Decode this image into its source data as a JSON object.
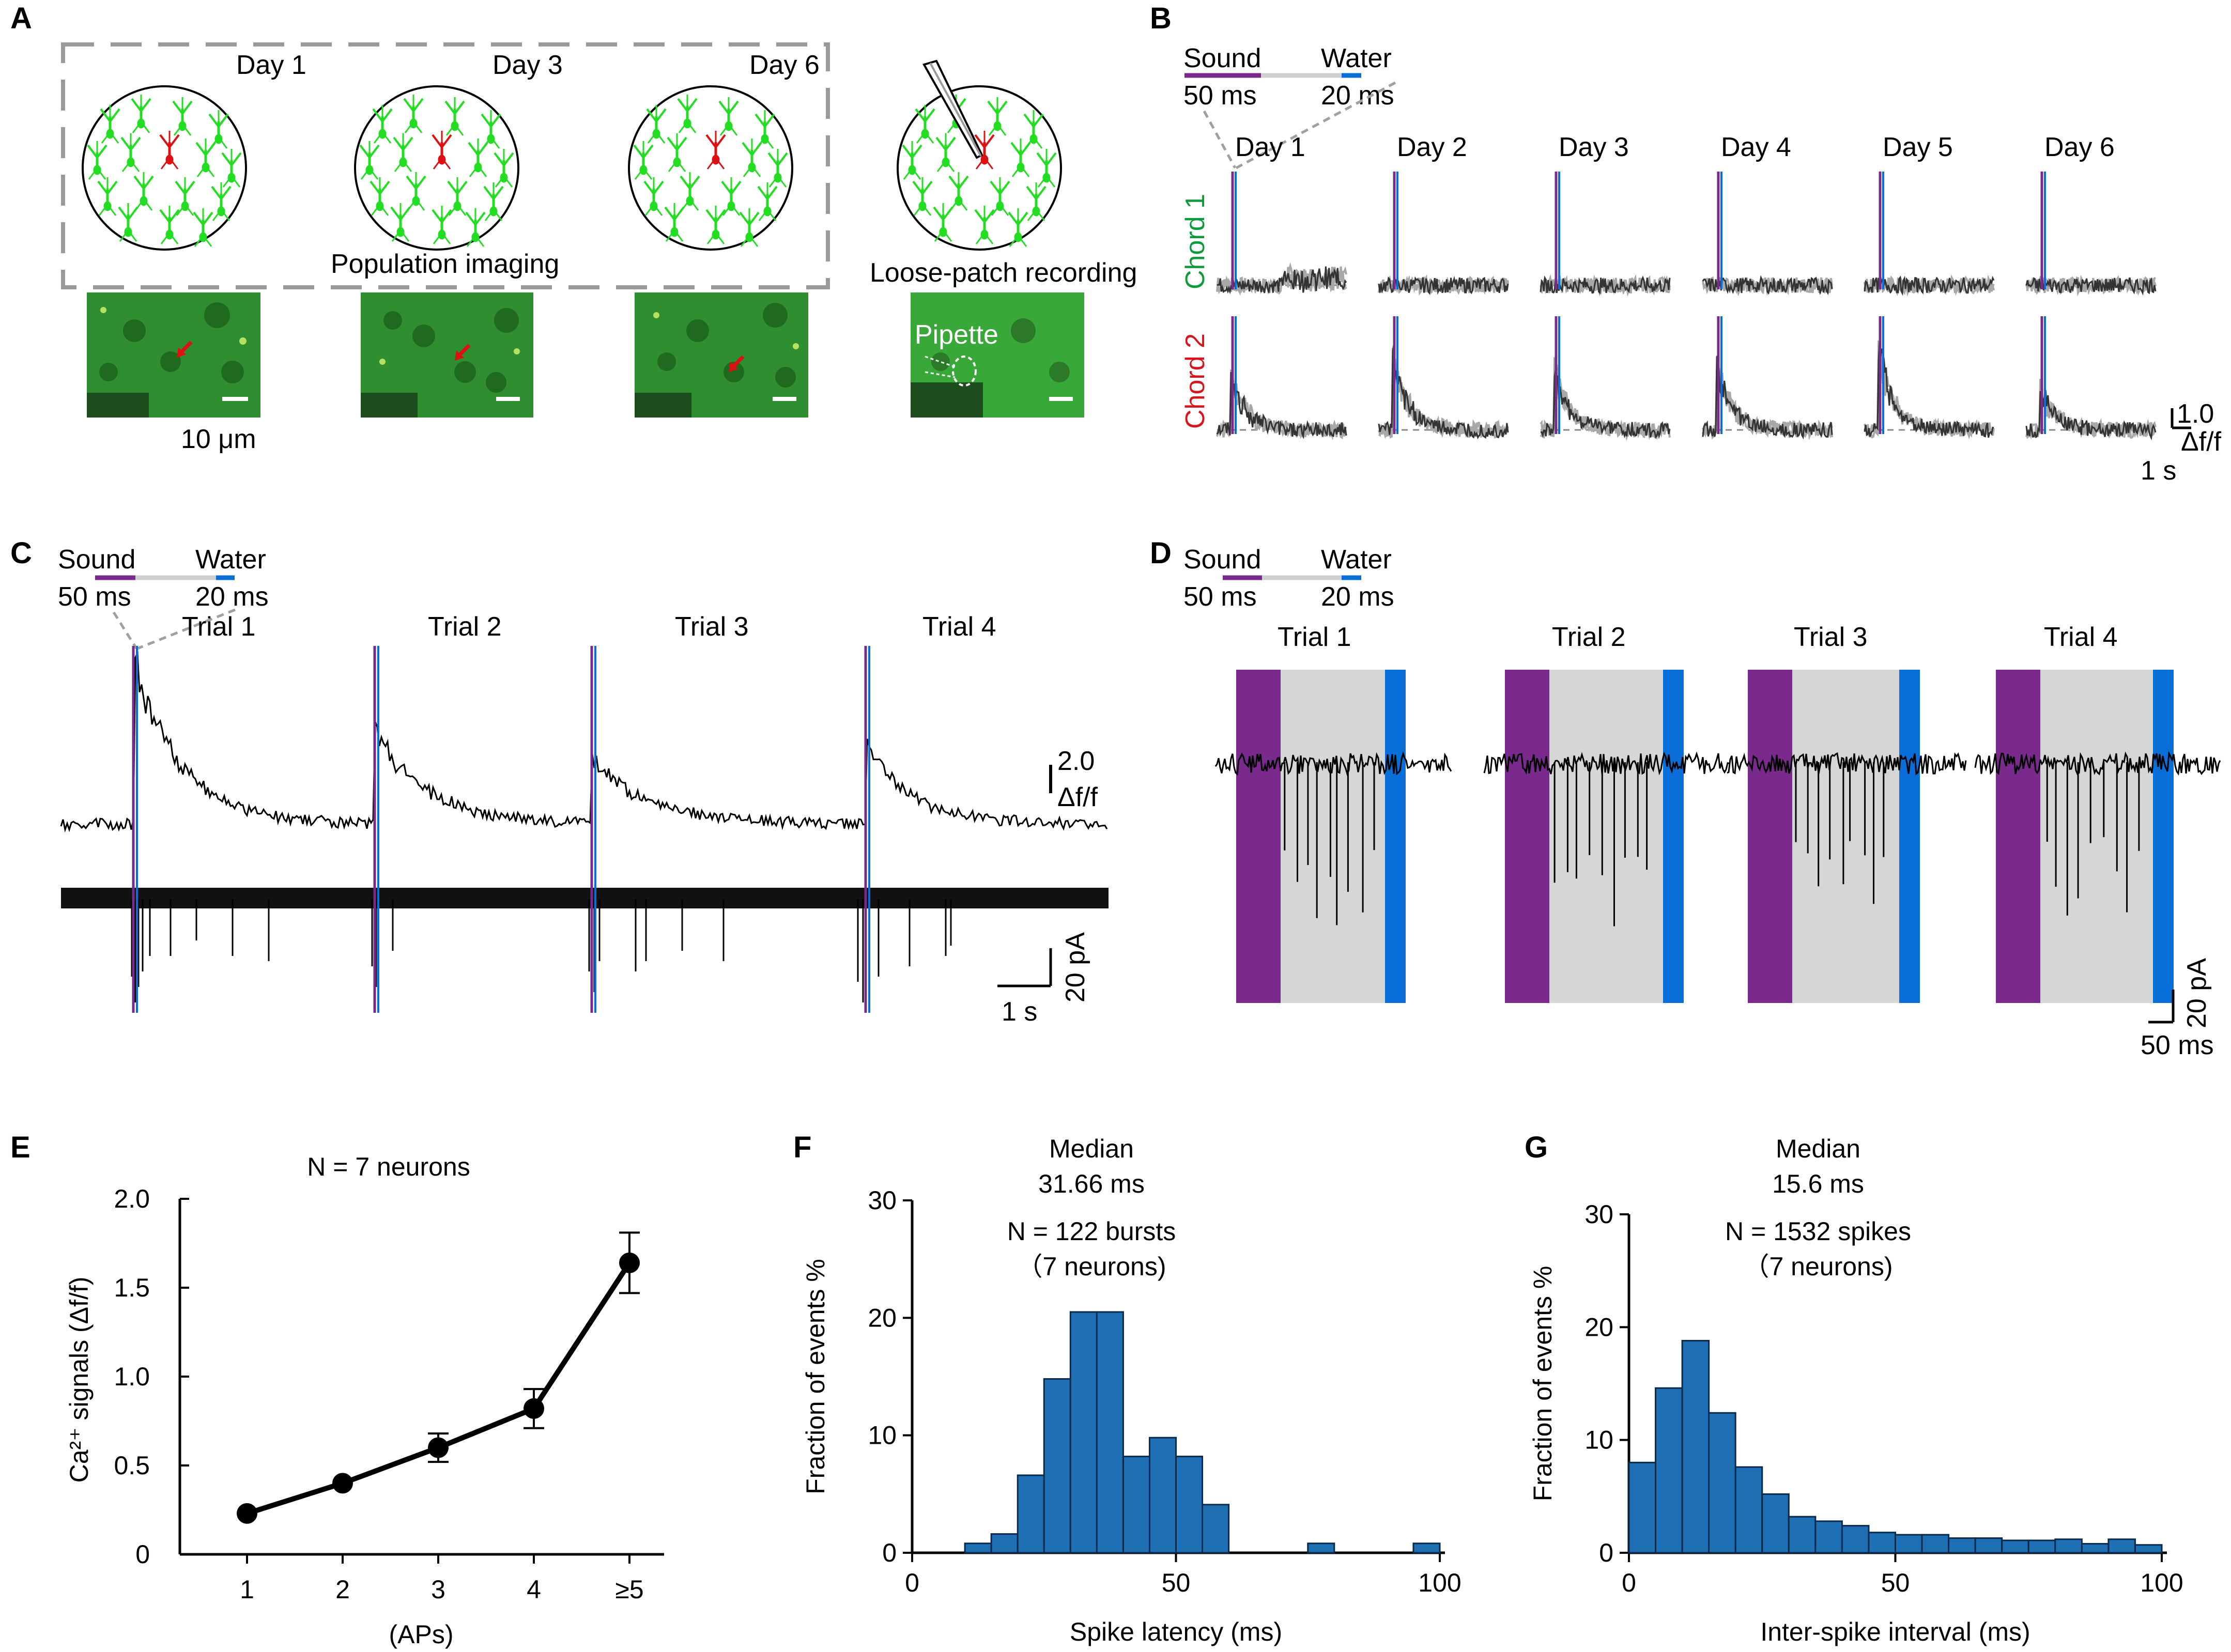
{
  "colors": {
    "neuron": "#22dd22",
    "target": "#dd1111",
    "sound": "#7a2a8c",
    "water": "#0a6ed8",
    "gray_window": "#d6d6d6",
    "bar": "#1f6fb5",
    "chord1": "#0f9a3a",
    "chord2": "#d8141c",
    "micro_bg": "#2f8e2f"
  },
  "panels": {
    "A": {
      "label": "A",
      "days": [
        "Day 1",
        "Day 3",
        "Day 6"
      ],
      "caption_imaging": "Population imaging",
      "caption_patch": "Loose-patch recording",
      "pipette": "Pipette",
      "scalebar": "10 μm"
    },
    "B": {
      "label": "B",
      "sound": "Sound",
      "sound_dur": "50 ms",
      "water": "Water",
      "water_dur": "20 ms",
      "days": [
        "Day 1",
        "Day 2",
        "Day 3",
        "Day 4",
        "Day 5",
        "Day 6"
      ],
      "row1": "Chord 1",
      "row2": "Chord 2",
      "scale_y_value": "1.0",
      "scale_y_unit": "Δf/f",
      "scale_x": "1 s"
    },
    "C": {
      "label": "C",
      "sound": "Sound",
      "sound_dur": "50 ms",
      "water": "Water",
      "water_dur": "20 ms",
      "trials": [
        "Trial 1",
        "Trial 2",
        "Trial 3",
        "Trial 4"
      ],
      "scale_ca_value": "2.0",
      "scale_ca_unit": "Δf/f",
      "scale_pa": "20 pA",
      "scale_x": "1 s"
    },
    "D": {
      "label": "D",
      "sound": "Sound",
      "sound_dur": "50 ms",
      "water": "Water",
      "water_dur": "20 ms",
      "trials": [
        "Trial 1",
        "Trial 2",
        "Trial 3",
        "Trial 4"
      ],
      "scale_pa": "20 pA",
      "scale_x": "50 ms"
    },
    "E": {
      "label": "E"
    },
    "F": {
      "label": "F"
    },
    "G": {
      "label": "G"
    }
  },
  "chart_data": [
    {
      "id": "E",
      "type": "line",
      "title": "N = 7 neurons",
      "xlabel": "(APs)",
      "ylabel": "Ca²⁺ signals (Δf/f)",
      "categories": [
        "1",
        "2",
        "3",
        "4",
        "≥5"
      ],
      "values": [
        0.23,
        0.4,
        0.6,
        0.82,
        1.64
      ],
      "errors": [
        0.02,
        0.03,
        0.08,
        0.11,
        0.17
      ],
      "ylim": [
        0,
        2.0
      ],
      "yticks": [
        "0",
        "0.5",
        "1.0",
        "1.5",
        "2.0"
      ],
      "ytick_values": [
        0,
        0.5,
        1.0,
        1.5,
        2.0
      ]
    },
    {
      "id": "F",
      "type": "bar",
      "title": "Median",
      "subtitle": "31.66 ms",
      "annotation": "N = 122 bursts",
      "annotation2": "（7 neurons)",
      "xlabel": "Spike latency (ms)",
      "ylabel": "Fraction of events %",
      "bin_width": 5,
      "bin_starts": [
        10,
        15,
        20,
        25,
        30,
        35,
        40,
        45,
        50,
        55,
        75,
        95
      ],
      "values": [
        0.8,
        1.6,
        6.6,
        14.8,
        20.5,
        20.5,
        8.2,
        9.8,
        8.2,
        4.1,
        0.8,
        0.8
      ],
      "xlim": [
        0,
        100
      ],
      "ylim": [
        0,
        30
      ],
      "xticks": [
        "0",
        "50",
        "100"
      ],
      "xtick_values": [
        0,
        50,
        100
      ],
      "yticks": [
        "0",
        "10",
        "20",
        "30"
      ],
      "ytick_values": [
        0,
        10,
        20,
        30
      ]
    },
    {
      "id": "G",
      "type": "bar",
      "title": "Median",
      "subtitle": "15.6 ms",
      "annotation": "N = 1532 spikes",
      "annotation2": "（7 neurons)",
      "xlabel": "Inter-spike interval (ms)",
      "ylabel": "Fraction of events %",
      "bin_width": 5,
      "bin_starts": [
        0,
        5,
        10,
        15,
        20,
        25,
        30,
        35,
        40,
        45,
        50,
        55,
        60,
        65,
        70,
        75,
        80,
        85,
        90,
        95
      ],
      "values": [
        8.0,
        14.6,
        18.8,
        12.4,
        7.6,
        5.2,
        3.2,
        2.8,
        2.4,
        1.8,
        1.6,
        1.6,
        1.3,
        1.3,
        1.1,
        1.1,
        1.2,
        0.8,
        1.2,
        0.7
      ],
      "xlim": [
        0,
        100
      ],
      "ylim": [
        0,
        30
      ],
      "xticks": [
        "0",
        "50",
        "100"
      ],
      "xtick_values": [
        0,
        50,
        100
      ],
      "yticks": [
        "0",
        "10",
        "20",
        "30"
      ],
      "ytick_values": [
        0,
        10,
        20,
        30
      ]
    }
  ]
}
